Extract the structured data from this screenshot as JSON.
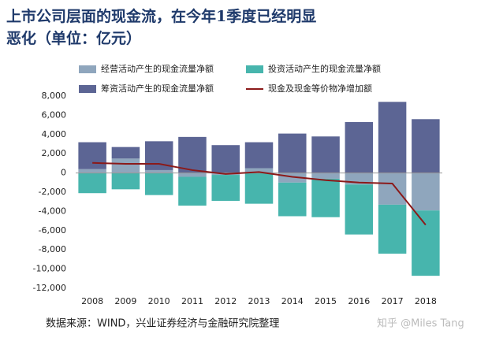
{
  "chart_data": {
    "type": "bar",
    "title_lines": [
      "上市公司层面的现金流，在今年1季度已经明显",
      "恶化（单位：亿元）"
    ],
    "source": "数据来源：WIND，兴业证券经济与金融研究院整理",
    "watermark": "知乎 @Miles Tang",
    "categories": [
      "2008",
      "2009",
      "2010",
      "2011",
      "2012",
      "2013",
      "2014",
      "2015",
      "2016",
      "2017",
      "2018"
    ],
    "series": [
      {
        "name": "经营活动产生的现金流量净额",
        "color": "#8fa6bd",
        "values": [
          400,
          1500,
          300,
          -400,
          -200,
          500,
          -1000,
          -600,
          -1200,
          -3300,
          -3900
        ]
      },
      {
        "name": "投资活动产生的现金流量净额",
        "color": "#47b5ad",
        "values": [
          -2100,
          -1700,
          -2300,
          -3000,
          -2700,
          -3200,
          -3500,
          -4000,
          -5200,
          -5100,
          -6800
        ]
      },
      {
        "name": "筹资活动产生的现金流量净额",
        "color": "#5c6594",
        "values": [
          2800,
          1200,
          3000,
          3750,
          2900,
          2700,
          4100,
          3800,
          5300,
          7400,
          5600
        ]
      },
      {
        "name": "现金及现金等价物净增加额",
        "color": "#8b1a1a",
        "type": "line",
        "values": [
          1050,
          950,
          950,
          300,
          -100,
          100,
          -400,
          -750,
          -1000,
          -1100,
          -5400
        ]
      }
    ],
    "ylim": [
      -12000,
      8000
    ],
    "yticks": [
      {
        "value": -12000,
        "label": "-12,000"
      },
      {
        "value": -10000,
        "label": "-10,000"
      },
      {
        "value": -8000,
        "label": "-8,000"
      },
      {
        "value": -6000,
        "label": "-6,000"
      },
      {
        "value": -4000,
        "label": "-4,000"
      },
      {
        "value": -2000,
        "label": "-2,000"
      },
      0,
      {
        "value": 2000,
        "label": "2,000"
      },
      {
        "value": 4000,
        "label": "4,000"
      },
      {
        "value": 6000,
        "label": "6,000"
      },
      {
        "value": 8000,
        "label": "8,000"
      }
    ],
    "grid": false
  }
}
